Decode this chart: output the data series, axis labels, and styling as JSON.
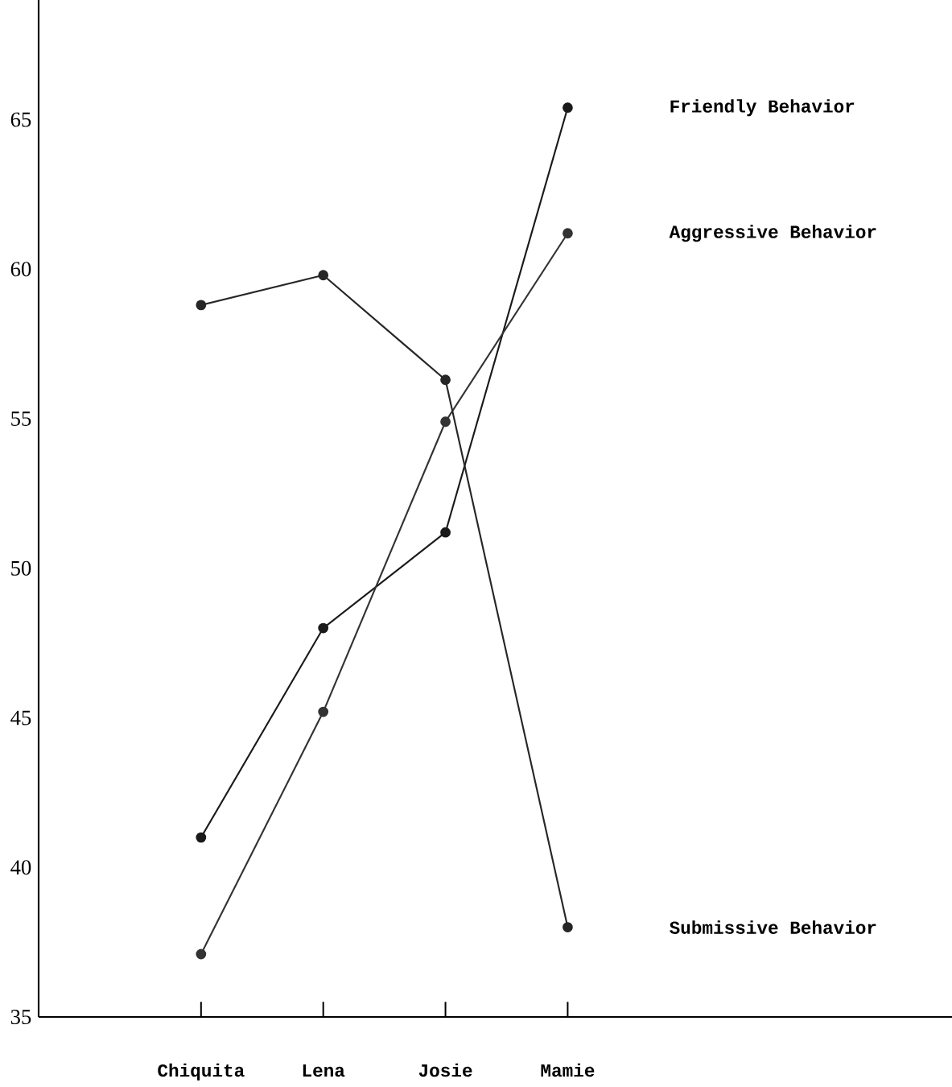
{
  "chart_data": {
    "type": "line",
    "categories": [
      "Chiquita",
      "Lena",
      "Josie",
      "Mamie"
    ],
    "series": [
      {
        "name": "Friendly Behavior",
        "color": "#1a1a1a",
        "values": [
          41.0,
          48.0,
          51.2,
          65.4
        ]
      },
      {
        "name": "Aggressive Behavior",
        "color": "#333333",
        "values": [
          37.1,
          45.2,
          54.9,
          61.2
        ]
      },
      {
        "name": "Submissive Behavior",
        "color": "#262626",
        "values": [
          58.8,
          59.8,
          56.3,
          38.0
        ]
      }
    ],
    "ylim": [
      35,
      69
    ],
    "yticks": [
      35,
      40,
      45,
      50,
      55,
      60,
      65
    ],
    "grid": false,
    "legend": false,
    "marker": "circle",
    "line_style": "solid"
  }
}
